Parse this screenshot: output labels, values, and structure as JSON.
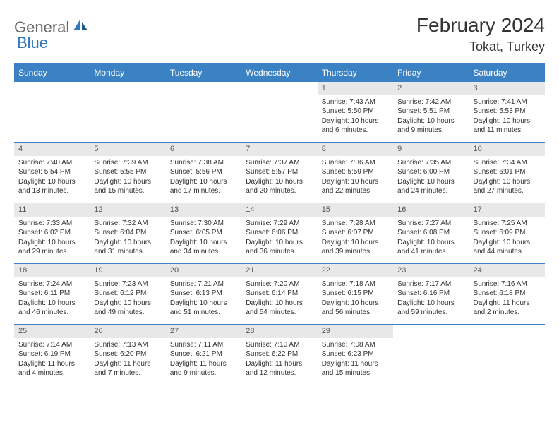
{
  "logo": {
    "text1": "General",
    "text2": "Blue"
  },
  "title": "February 2024",
  "location": "Tokat, Turkey",
  "colors": {
    "header_bg": "#3b82c4",
    "header_text": "#ffffff",
    "daynum_bg": "#e8e8e8",
    "border": "#3b82c4",
    "logo_gray": "#6b6b6b",
    "logo_blue": "#2f77b8"
  },
  "weekdays": [
    "Sunday",
    "Monday",
    "Tuesday",
    "Wednesday",
    "Thursday",
    "Friday",
    "Saturday"
  ],
  "weeks": [
    [
      null,
      null,
      null,
      null,
      {
        "d": "1",
        "sr": "Sunrise: 7:43 AM",
        "ss": "Sunset: 5:50 PM",
        "dl1": "Daylight: 10 hours",
        "dl2": "and 6 minutes."
      },
      {
        "d": "2",
        "sr": "Sunrise: 7:42 AM",
        "ss": "Sunset: 5:51 PM",
        "dl1": "Daylight: 10 hours",
        "dl2": "and 9 minutes."
      },
      {
        "d": "3",
        "sr": "Sunrise: 7:41 AM",
        "ss": "Sunset: 5:53 PM",
        "dl1": "Daylight: 10 hours",
        "dl2": "and 11 minutes."
      }
    ],
    [
      {
        "d": "4",
        "sr": "Sunrise: 7:40 AM",
        "ss": "Sunset: 5:54 PM",
        "dl1": "Daylight: 10 hours",
        "dl2": "and 13 minutes."
      },
      {
        "d": "5",
        "sr": "Sunrise: 7:39 AM",
        "ss": "Sunset: 5:55 PM",
        "dl1": "Daylight: 10 hours",
        "dl2": "and 15 minutes."
      },
      {
        "d": "6",
        "sr": "Sunrise: 7:38 AM",
        "ss": "Sunset: 5:56 PM",
        "dl1": "Daylight: 10 hours",
        "dl2": "and 17 minutes."
      },
      {
        "d": "7",
        "sr": "Sunrise: 7:37 AM",
        "ss": "Sunset: 5:57 PM",
        "dl1": "Daylight: 10 hours",
        "dl2": "and 20 minutes."
      },
      {
        "d": "8",
        "sr": "Sunrise: 7:36 AM",
        "ss": "Sunset: 5:59 PM",
        "dl1": "Daylight: 10 hours",
        "dl2": "and 22 minutes."
      },
      {
        "d": "9",
        "sr": "Sunrise: 7:35 AM",
        "ss": "Sunset: 6:00 PM",
        "dl1": "Daylight: 10 hours",
        "dl2": "and 24 minutes."
      },
      {
        "d": "10",
        "sr": "Sunrise: 7:34 AM",
        "ss": "Sunset: 6:01 PM",
        "dl1": "Daylight: 10 hours",
        "dl2": "and 27 minutes."
      }
    ],
    [
      {
        "d": "11",
        "sr": "Sunrise: 7:33 AM",
        "ss": "Sunset: 6:02 PM",
        "dl1": "Daylight: 10 hours",
        "dl2": "and 29 minutes."
      },
      {
        "d": "12",
        "sr": "Sunrise: 7:32 AM",
        "ss": "Sunset: 6:04 PM",
        "dl1": "Daylight: 10 hours",
        "dl2": "and 31 minutes."
      },
      {
        "d": "13",
        "sr": "Sunrise: 7:30 AM",
        "ss": "Sunset: 6:05 PM",
        "dl1": "Daylight: 10 hours",
        "dl2": "and 34 minutes."
      },
      {
        "d": "14",
        "sr": "Sunrise: 7:29 AM",
        "ss": "Sunset: 6:06 PM",
        "dl1": "Daylight: 10 hours",
        "dl2": "and 36 minutes."
      },
      {
        "d": "15",
        "sr": "Sunrise: 7:28 AM",
        "ss": "Sunset: 6:07 PM",
        "dl1": "Daylight: 10 hours",
        "dl2": "and 39 minutes."
      },
      {
        "d": "16",
        "sr": "Sunrise: 7:27 AM",
        "ss": "Sunset: 6:08 PM",
        "dl1": "Daylight: 10 hours",
        "dl2": "and 41 minutes."
      },
      {
        "d": "17",
        "sr": "Sunrise: 7:25 AM",
        "ss": "Sunset: 6:09 PM",
        "dl1": "Daylight: 10 hours",
        "dl2": "and 44 minutes."
      }
    ],
    [
      {
        "d": "18",
        "sr": "Sunrise: 7:24 AM",
        "ss": "Sunset: 6:11 PM",
        "dl1": "Daylight: 10 hours",
        "dl2": "and 46 minutes."
      },
      {
        "d": "19",
        "sr": "Sunrise: 7:23 AM",
        "ss": "Sunset: 6:12 PM",
        "dl1": "Daylight: 10 hours",
        "dl2": "and 49 minutes."
      },
      {
        "d": "20",
        "sr": "Sunrise: 7:21 AM",
        "ss": "Sunset: 6:13 PM",
        "dl1": "Daylight: 10 hours",
        "dl2": "and 51 minutes."
      },
      {
        "d": "21",
        "sr": "Sunrise: 7:20 AM",
        "ss": "Sunset: 6:14 PM",
        "dl1": "Daylight: 10 hours",
        "dl2": "and 54 minutes."
      },
      {
        "d": "22",
        "sr": "Sunrise: 7:18 AM",
        "ss": "Sunset: 6:15 PM",
        "dl1": "Daylight: 10 hours",
        "dl2": "and 56 minutes."
      },
      {
        "d": "23",
        "sr": "Sunrise: 7:17 AM",
        "ss": "Sunset: 6:16 PM",
        "dl1": "Daylight: 10 hours",
        "dl2": "and 59 minutes."
      },
      {
        "d": "24",
        "sr": "Sunrise: 7:16 AM",
        "ss": "Sunset: 6:18 PM",
        "dl1": "Daylight: 11 hours",
        "dl2": "and 2 minutes."
      }
    ],
    [
      {
        "d": "25",
        "sr": "Sunrise: 7:14 AM",
        "ss": "Sunset: 6:19 PM",
        "dl1": "Daylight: 11 hours",
        "dl2": "and 4 minutes."
      },
      {
        "d": "26",
        "sr": "Sunrise: 7:13 AM",
        "ss": "Sunset: 6:20 PM",
        "dl1": "Daylight: 11 hours",
        "dl2": "and 7 minutes."
      },
      {
        "d": "27",
        "sr": "Sunrise: 7:11 AM",
        "ss": "Sunset: 6:21 PM",
        "dl1": "Daylight: 11 hours",
        "dl2": "and 9 minutes."
      },
      {
        "d": "28",
        "sr": "Sunrise: 7:10 AM",
        "ss": "Sunset: 6:22 PM",
        "dl1": "Daylight: 11 hours",
        "dl2": "and 12 minutes."
      },
      {
        "d": "29",
        "sr": "Sunrise: 7:08 AM",
        "ss": "Sunset: 6:23 PM",
        "dl1": "Daylight: 11 hours",
        "dl2": "and 15 minutes."
      },
      null,
      null
    ]
  ]
}
